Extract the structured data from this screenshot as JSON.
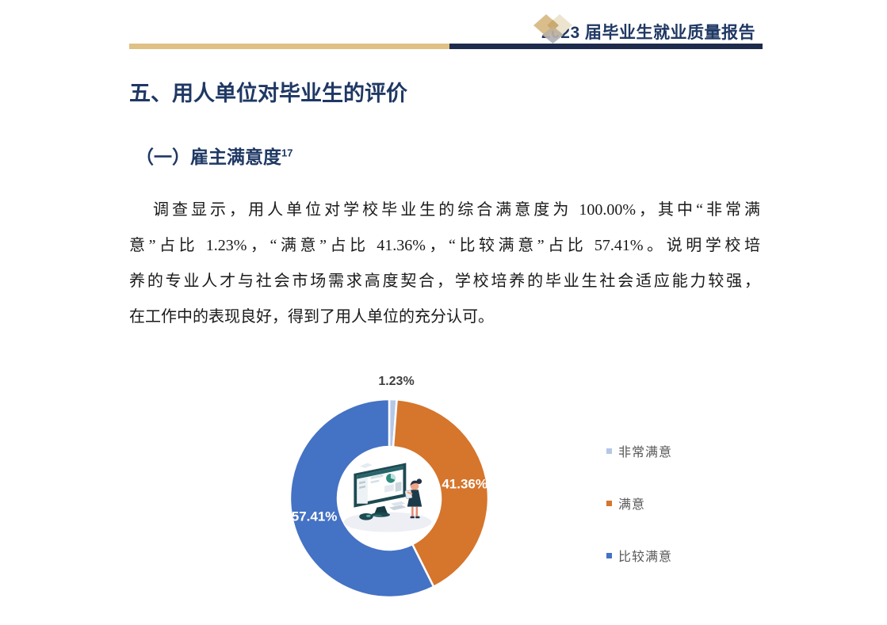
{
  "header": {
    "title": "2023 届毕业生就业质量报告"
  },
  "section": {
    "heading": "五、用人单位对毕业生的评价",
    "subheading": "（一）雇主满意度",
    "subheading_note": "17"
  },
  "paragraph": {
    "lines": [
      "调查显示，用人单位对学校毕业生的综合满意度为 100.00%，其中“非常满",
      "意”占比 1.23%，“满意”占比 41.36%，“比较满意”占比 57.41%。说明学校培",
      "养的专业人才与社会市场需求高度契合，学校培养的毕业生社会适应能力较强，",
      "在工作中的表现良好，得到了用人单位的充分认可。"
    ]
  },
  "chart_data": {
    "type": "pie",
    "subtype": "donut",
    "categories": [
      "非常满意",
      "满意",
      "比较满意"
    ],
    "values": [
      1.23,
      41.36,
      57.41
    ],
    "labels": [
      "1.23%",
      "41.36%",
      "57.41%"
    ],
    "colors": [
      "#B4C7E7",
      "#D6752C",
      "#4472C4"
    ],
    "start_angle_deg": -90,
    "direction": "clockwise",
    "inner_radius_ratio": 0.52,
    "slice_border_color": "#FFFFFF",
    "legend_position": "right",
    "outside_label_color": "#404040",
    "inside_label_color": "#FFFFFF"
  },
  "colors": {
    "heading_navy": "#1F3864",
    "rule_tan": "#DFC185",
    "rule_navy": "#1E2B4D",
    "body_text": "#1A1A1A",
    "legend_text": "#595959"
  }
}
